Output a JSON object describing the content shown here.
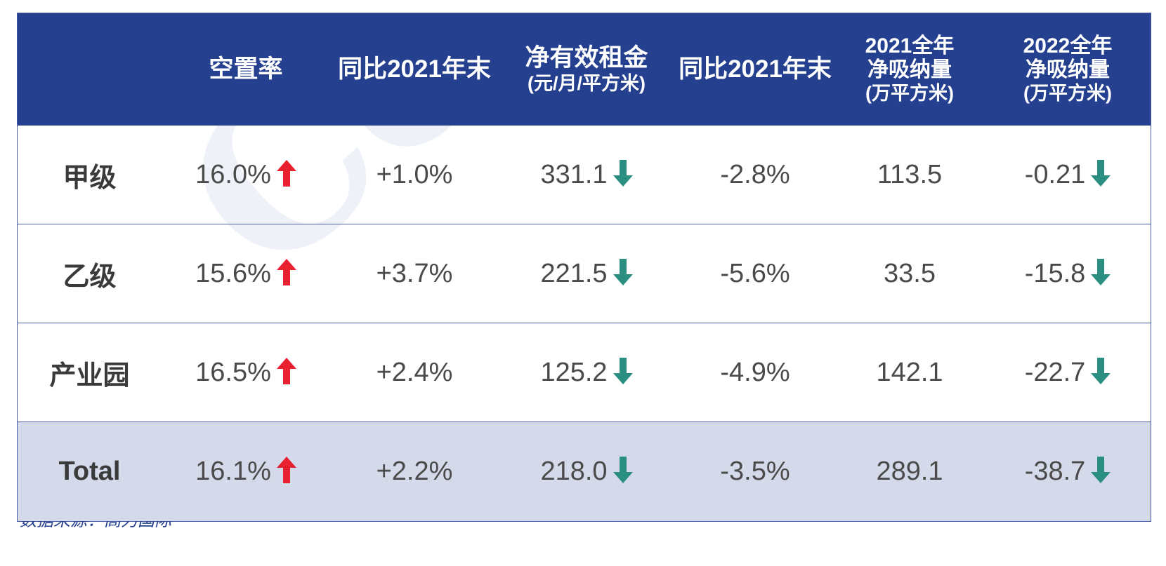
{
  "watermark": "Colliers",
  "header": {
    "col0": "",
    "vacancy": "空置率",
    "yoy1": "同比2021年末",
    "rent_line1": "净有效租金",
    "rent_line2": "(元/月/平方米)",
    "yoy2": "同比2021年末",
    "abs2021_line1": "2021全年",
    "abs2021_line2": "净吸纳量",
    "abs2021_line3": "(万平方米)",
    "abs2022_line1": "2022全年",
    "abs2022_line2": "净吸纳量",
    "abs2022_line3": "(万平方米)"
  },
  "rows": [
    {
      "label": "甲级",
      "vacancy": "16.0%",
      "vacancy_trend": "up",
      "vacancy_yoy": "+1.0%",
      "rent": "331.1",
      "rent_trend": "down",
      "rent_yoy": "-2.8%",
      "abs2021": "113.5",
      "abs2022": "-0.21",
      "abs2022_trend": "down"
    },
    {
      "label": "乙级",
      "vacancy": "15.6%",
      "vacancy_trend": "up",
      "vacancy_yoy": "+3.7%",
      "rent": "221.5",
      "rent_trend": "down",
      "rent_yoy": "-5.6%",
      "abs2021": "33.5",
      "abs2022": "-15.8",
      "abs2022_trend": "down"
    },
    {
      "label": "产业园",
      "vacancy": "16.5%",
      "vacancy_trend": "up",
      "vacancy_yoy": "+2.4%",
      "rent": "125.2",
      "rent_trend": "down",
      "rent_yoy": "-4.9%",
      "abs2021": "142.1",
      "abs2022": "-22.7",
      "abs2022_trend": "down"
    },
    {
      "label": "Total",
      "vacancy": "16.1%",
      "vacancy_trend": "up",
      "vacancy_yoy": "+2.2%",
      "rent": "218.0",
      "rent_trend": "down",
      "rent_yoy": "-3.5%",
      "abs2021": "289.1",
      "abs2022": "-38.7",
      "abs2022_trend": "down"
    }
  ],
  "icons": {
    "up": "arrow-up-icon",
    "down": "arrow-down-icon"
  },
  "colors": {
    "header_bg": "#25408f",
    "up_arrow": "#e8202f",
    "down_arrow": "#2a8f80",
    "total_bg": "#d5daea"
  },
  "source": "数据来源：高力国际"
}
